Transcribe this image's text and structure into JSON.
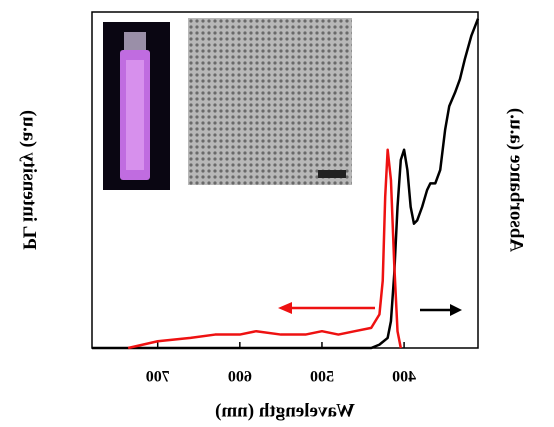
{
  "chart_data": {
    "type": "line",
    "x_label": "Wavelength (nm)",
    "y_label": "PL intensity (a.u)",
    "y2_label": "Absorbance (a.u.)",
    "mirrored": true,
    "xlim": [
      310,
      780
    ],
    "xticks": [
      400,
      500,
      600,
      700
    ],
    "ylim": [
      0,
      1
    ],
    "series": [
      {
        "color": "#000000",
        "x": [
          310,
          318,
          326,
          332,
          338,
          345,
          350,
          356,
          362,
          368,
          372,
          378,
          384,
          388,
          392,
          396,
          400,
          404,
          408,
          412,
          416,
          420,
          430,
          440,
          500,
          600,
          700,
          780
        ],
        "values": [
          0.98,
          0.93,
          0.86,
          0.8,
          0.76,
          0.72,
          0.65,
          0.53,
          0.49,
          0.49,
          0.47,
          0.42,
          0.38,
          0.37,
          0.42,
          0.53,
          0.59,
          0.56,
          0.42,
          0.22,
          0.08,
          0.03,
          0.01,
          0,
          0,
          0,
          0,
          0
        ]
      },
      {
        "color": "#ee1111",
        "x": [
          404,
          408,
          412,
          416,
          420,
          423,
          426,
          430,
          440,
          460,
          480,
          500,
          520,
          550,
          580,
          600,
          630,
          660,
          700,
          736
        ],
        "values": [
          0,
          0.05,
          0.25,
          0.5,
          0.59,
          0.45,
          0.2,
          0.1,
          0.06,
          0.05,
          0.04,
          0.05,
          0.04,
          0.04,
          0.05,
          0.04,
          0.04,
          0.03,
          0.02,
          0
        ]
      }
    ]
  }
}
